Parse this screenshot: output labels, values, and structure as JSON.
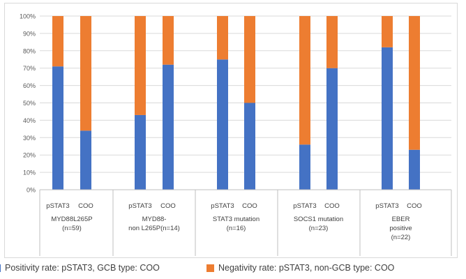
{
  "chart_data": {
    "type": "bar",
    "stacked": true,
    "categories": [
      "pSTAT3",
      "COO",
      "pSTAT3",
      "COO",
      "pSTAT3",
      "COO",
      "pSTAT3",
      "COO",
      "pSTAT3",
      "COO"
    ],
    "groups": [
      {
        "label_lines": [
          "MYD88L265P",
          "(n=59)"
        ],
        "members": [
          0,
          1
        ]
      },
      {
        "label_lines": [
          "MYD88-",
          "non L265P(n=14)"
        ],
        "members": [
          2,
          3
        ]
      },
      {
        "label_lines": [
          "STAT3 mutation",
          "(n=16)"
        ],
        "members": [
          4,
          5
        ]
      },
      {
        "label_lines": [
          "SOCS1 mutation",
          "(n=23)"
        ],
        "members": [
          6,
          7
        ]
      },
      {
        "label_lines": [
          "EBER",
          "positive",
          "(n=22)"
        ],
        "members": [
          8,
          9
        ]
      }
    ],
    "series": [
      {
        "name": "Positivity rate: pSTAT3, GCB type: COO",
        "color": "#4472c4",
        "values": [
          71,
          34,
          43,
          72,
          75,
          50,
          26,
          70,
          82,
          23
        ]
      },
      {
        "name": "Negativity rate: pSTAT3, non-GCB type: COO",
        "color": "#ed7d31",
        "values": [
          29,
          66,
          57,
          28,
          25,
          50,
          74,
          30,
          18,
          77
        ]
      }
    ],
    "yticks": [
      "0%",
      "10%",
      "20%",
      "30%",
      "40%",
      "50%",
      "60%",
      "70%",
      "80%",
      "90%",
      "100%"
    ],
    "ylim": [
      0,
      100
    ],
    "grid": true,
    "legend_position": "bottom"
  },
  "legend": {
    "items": [
      {
        "label": "Positivity rate: pSTAT3, GCB type: COO",
        "color": "#4472c4"
      },
      {
        "label": "Negativity rate: pSTAT3, non-GCB type: COO",
        "color": "#ed7d31"
      }
    ]
  }
}
